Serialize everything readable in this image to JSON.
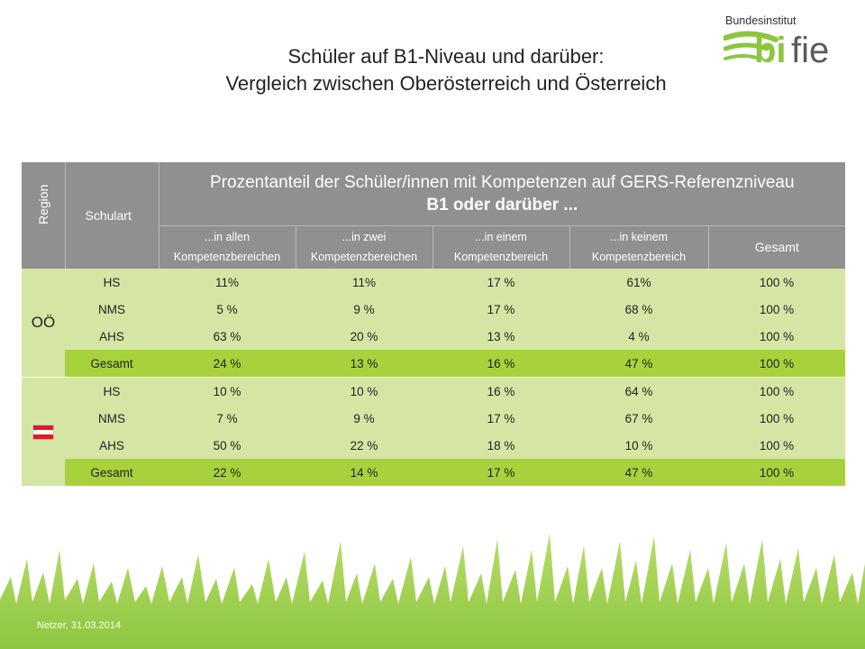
{
  "slide": {
    "title_line1": "Schüler auf B1-Niveau und darüber:",
    "title_line2": "Vergleich zwischen Oberösterreich und Österreich",
    "footer": "Netzer, 31.03.2014"
  },
  "logo": {
    "top_text": "Bundesinstitut",
    "brand_bi": "bi",
    "brand_fie": "fie",
    "green": "#8cc63f",
    "gray": "#5a5a5a"
  },
  "table": {
    "header": {
      "region": "Region",
      "schulart": "Schulart",
      "main_line1": "Prozentanteil der Schüler/innen mit Kompetenzen auf GERS-Referenzniveau",
      "main_line2": "B1 oder darüber ...",
      "sub": [
        {
          "l1": "...in allen",
          "l2": "Kompetenzbereichen"
        },
        {
          "l1": "...in zwei",
          "l2": "Kompetenzbereichen"
        },
        {
          "l1": "...in einem",
          "l2": "Kompetenzbereich"
        },
        {
          "l1": "...in keinem",
          "l2": "Kompetenzbereich"
        },
        {
          "l1": "Gesamt",
          "l2": ""
        }
      ]
    },
    "regions": [
      {
        "label": "OÖ",
        "rows": [
          {
            "schulart": "HS",
            "values": [
              "11%",
              "11%",
              "17 %",
              "61%",
              "100 %"
            ]
          },
          {
            "schulart": "NMS",
            "values": [
              "5 %",
              "9 %",
              "17 %",
              "68 %",
              "100 %"
            ]
          },
          {
            "schulart": "AHS",
            "values": [
              "63 %",
              "20 %",
              "13 %",
              "4 %",
              "100 %"
            ]
          },
          {
            "schulart": "Gesamt",
            "values": [
              "24 %",
              "13 %",
              "16 %",
              "47 %",
              "100 %"
            ]
          }
        ]
      },
      {
        "label": "",
        "flag": "austria-flag-icon",
        "rows": [
          {
            "schulart": "HS",
            "values": [
              "10 %",
              "10 %",
              "16 %",
              "64 %",
              "100 %"
            ]
          },
          {
            "schulart": "NMS",
            "values": [
              "7 %",
              "9 %",
              "17 %",
              "67 %",
              "100 %"
            ]
          },
          {
            "schulart": "AHS",
            "values": [
              "50 %",
              "22 %",
              "18 %",
              "10 %",
              "100 %"
            ]
          },
          {
            "schulart": "Gesamt",
            "values": [
              "22 %",
              "14 %",
              "17 %",
              "47 %",
              "100 %"
            ]
          }
        ]
      }
    ],
    "colors": {
      "header_bg": "#909090",
      "row_bg": "#d5e6a4",
      "total_bg": "#a8d23c"
    }
  }
}
